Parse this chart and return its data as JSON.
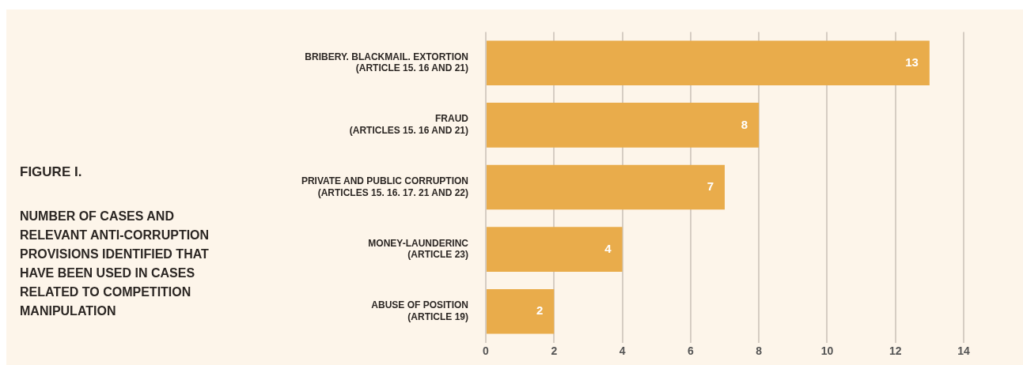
{
  "chart_data": {
    "type": "bar",
    "orientation": "horizontal",
    "title": "FIGURE I.",
    "subtitle": "NUMBER OF CASES AND RELEVANT ANTI-CORRUPTION PROVISIONS IDENTIFIED THAT HAVE BEEN USED IN CASES RELATED TO COMPETITION MANIPULATION",
    "categories": [
      "BRIBERY. BLACKMAIL. EXTORTION\n(ARTICLE 15. 16 AND 21)",
      "FRAUD\n(ARTICLES 15. 16 AND 21)",
      "PRIVATE AND PUBLIC CORRUPTION\n(ARTICLES 15. 16. 17. 21 AND 22)",
      "MONEY-LAUNDERINC\n(ARTICLE 23)",
      "ABUSE OF POSITION\n(ARTICLE 19)"
    ],
    "values": [
      13,
      8,
      7,
      4,
      2
    ],
    "color": "#e9ac4b",
    "xlim": [
      0,
      14
    ],
    "xticks": [
      0,
      2,
      4,
      6,
      8,
      10,
      12,
      14
    ],
    "grid": "x",
    "data_labels": true,
    "legend": false
  }
}
